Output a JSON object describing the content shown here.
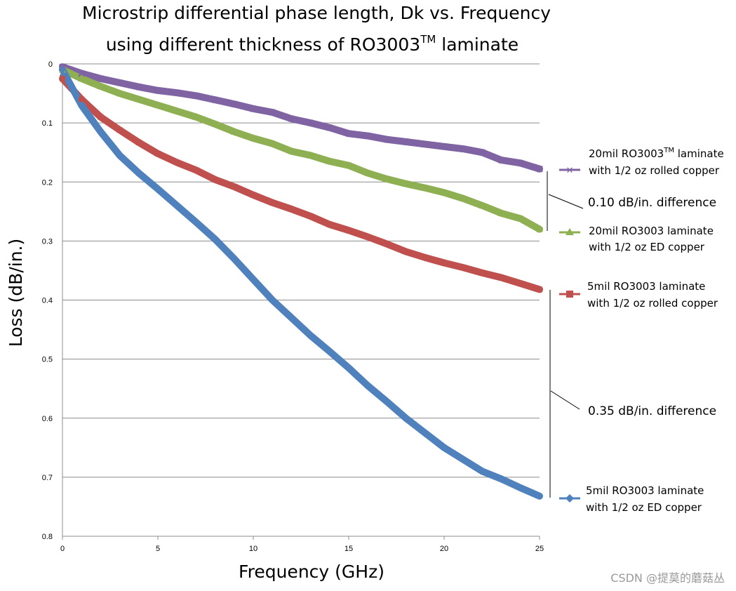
{
  "chart_data": {
    "type": "line",
    "title_line1": "Microstrip differential phase length, Dk vs. Frequency",
    "title_line2_pre": "using different thickness of RO3003",
    "title_line2_sup": "TM",
    "title_line2_post": " laminate",
    "xlabel": "Frequency (GHz)",
    "ylabel": "Loss (dB/in.)",
    "xlim": [
      0,
      25
    ],
    "ylim": [
      0,
      0.8
    ],
    "y_inverted": true,
    "x_ticks": [
      "0",
      "5",
      "10",
      "15",
      "20",
      "25"
    ],
    "y_ticks": [
      "0",
      "0.1",
      "0.2",
      "0.3",
      "0.4",
      "0.5",
      "0.6",
      "0.7",
      "0.8"
    ],
    "origin_label": "0",
    "series": [
      {
        "name": "20mil RO3003 laminate with 1/2 oz rolled copper",
        "label_line1_pre": "20mil RO3003",
        "label_line1_sup": "TM",
        "label_line1_post": " laminate",
        "label_line2": "with 1/2 oz rolled copper",
        "color": "#7f63a2",
        "marker": "x",
        "x": [
          0,
          1,
          2,
          3,
          4,
          5,
          6,
          7,
          8,
          9,
          10,
          11,
          12,
          13,
          14,
          15,
          16,
          17,
          18,
          19,
          20,
          21,
          22,
          23,
          24,
          25
        ],
        "y": [
          0.005,
          0.016,
          0.025,
          0.032,
          0.039,
          0.045,
          0.049,
          0.054,
          0.061,
          0.068,
          0.076,
          0.082,
          0.093,
          0.1,
          0.108,
          0.118,
          0.122,
          0.128,
          0.132,
          0.136,
          0.14,
          0.144,
          0.15,
          0.163,
          0.168,
          0.178
        ]
      },
      {
        "name": "20mil RO3003 laminate with 1/2 oz ED copper",
        "label_line1": "20mil RO3003 laminate",
        "label_line2": "with 1/2 oz ED copper",
        "color": "#8fb052",
        "marker": "triangle",
        "x": [
          0,
          1,
          2,
          3,
          4,
          5,
          6,
          7,
          8,
          9,
          10,
          11,
          12,
          13,
          14,
          15,
          16,
          17,
          18,
          19,
          20,
          21,
          22,
          23,
          24,
          25
        ],
        "y": [
          0.01,
          0.025,
          0.038,
          0.05,
          0.06,
          0.07,
          0.08,
          0.09,
          0.102,
          0.115,
          0.126,
          0.135,
          0.148,
          0.155,
          0.165,
          0.172,
          0.185,
          0.195,
          0.203,
          0.21,
          0.218,
          0.228,
          0.24,
          0.253,
          0.262,
          0.28
        ]
      },
      {
        "name": "5mil RO3003 laminate with 1/2 oz rolled copper",
        "label_line1": "5mil RO3003 laminate",
        "label_line2": "with 1/2 oz rolled copper",
        "color": "#c0504d",
        "marker": "square",
        "x": [
          0,
          1,
          2,
          3,
          4,
          5,
          6,
          7,
          8,
          9,
          10,
          11,
          12,
          13,
          14,
          15,
          16,
          17,
          18,
          19,
          20,
          21,
          22,
          23,
          24,
          25
        ],
        "y": [
          0.025,
          0.06,
          0.09,
          0.112,
          0.133,
          0.152,
          0.167,
          0.18,
          0.196,
          0.208,
          0.222,
          0.235,
          0.246,
          0.258,
          0.272,
          0.282,
          0.293,
          0.305,
          0.318,
          0.328,
          0.337,
          0.345,
          0.354,
          0.362,
          0.372,
          0.382
        ]
      },
      {
        "name": "5mil RO3003 laminate with 1/2 oz ED copper",
        "label_line1": "5mil RO3003 laminate",
        "label_line2": "with 1/2 oz ED copper",
        "color": "#4f81bd",
        "marker": "diamond",
        "x": [
          0,
          1,
          2,
          3,
          4,
          5,
          6,
          7,
          8,
          9,
          10,
          11,
          12,
          13,
          14,
          15,
          16,
          17,
          18,
          19,
          20,
          21,
          22,
          23,
          24,
          25
        ],
        "y": [
          0.01,
          0.07,
          0.115,
          0.155,
          0.185,
          0.212,
          0.24,
          0.268,
          0.297,
          0.33,
          0.365,
          0.4,
          0.43,
          0.46,
          0.487,
          0.515,
          0.545,
          0.572,
          0.6,
          0.625,
          0.65,
          0.67,
          0.69,
          0.703,
          0.718,
          0.732
        ]
      }
    ],
    "annotations": [
      {
        "text": "0.10 dB/in. difference"
      },
      {
        "text": "0.35 dB/in. difference"
      }
    ]
  },
  "watermark": "CSDN @提莫的蘑菇丛"
}
